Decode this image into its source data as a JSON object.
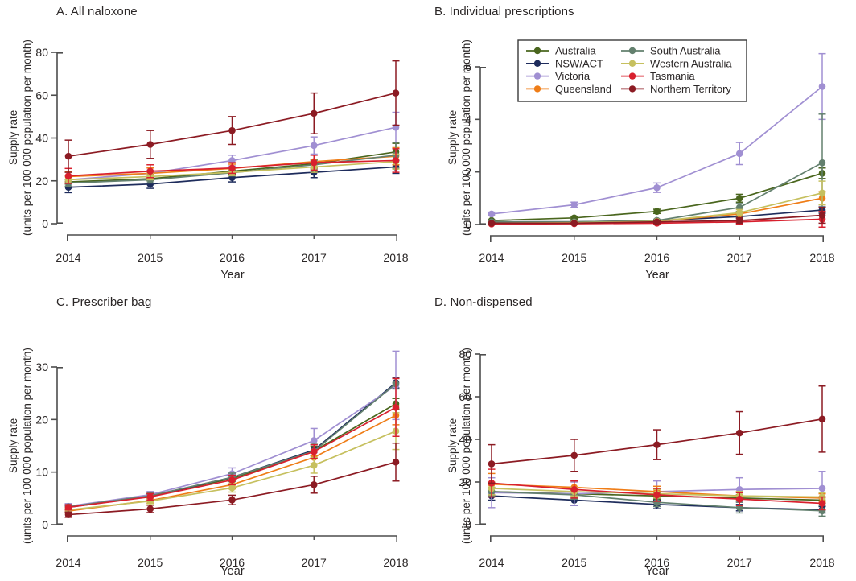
{
  "figure": {
    "background": "#ffffff",
    "text_color": "#2b2727",
    "axis_color": "#4d4d4d"
  },
  "colors": {
    "Australia": "#4a661e",
    "NSW/ACT": "#1e2c5c",
    "Victoria": "#a08fd2",
    "Queensland": "#ef7d17",
    "South Australia": "#63806e",
    "Western Australia": "#c6c05f",
    "Tasmania": "#d8202e",
    "Northern Territory": "#8c1b23"
  },
  "legend": {
    "columns": [
      [
        "Australia",
        "NSW/ACT",
        "Victoria",
        "Queensland"
      ],
      [
        "South Australia",
        "Western Australia",
        "Tasmania",
        "Northern Territory"
      ]
    ]
  },
  "chart_data": [
    {
      "type": "line",
      "title": "A. All naloxone",
      "xlabel": "Year",
      "ylabel": "Supply rate",
      "ylabel2": "(units per 100 000 population per month)",
      "x": [
        2014,
        2015,
        2016,
        2017,
        2018
      ],
      "ylim": [
        0,
        80
      ],
      "yticks": [
        0,
        20,
        40,
        60,
        80
      ],
      "legend": false,
      "error_bars": true,
      "series": [
        {
          "name": "Australia",
          "values": [
            19.5,
            21,
            24.5,
            28,
            33.5
          ],
          "err": [
            1,
            1,
            1.5,
            2,
            4
          ]
        },
        {
          "name": "NSW/ACT",
          "values": [
            17,
            18.5,
            21.5,
            24,
            26.5
          ],
          "err": [
            2.5,
            2,
            2,
            2.5,
            3
          ]
        },
        {
          "name": "Victoria",
          "values": [
            20.5,
            23.5,
            29.5,
            36.5,
            45
          ],
          "err": [
            1.5,
            1.5,
            2.5,
            4,
            7
          ]
        },
        {
          "name": "Queensland",
          "values": [
            22,
            23.5,
            25.8,
            29,
            31.5
          ],
          "err": [
            2.5,
            2.5,
            2,
            3,
            4
          ]
        },
        {
          "name": "South Australia",
          "values": [
            19,
            20.5,
            23.8,
            27.5,
            32
          ],
          "err": [
            1.5,
            1.5,
            1.5,
            2,
            6
          ]
        },
        {
          "name": "Western Australia",
          "values": [
            20.5,
            22,
            24,
            26.5,
            29
          ],
          "err": [
            1.5,
            1.5,
            1.5,
            2.5,
            3.5
          ]
        },
        {
          "name": "Tasmania",
          "values": [
            22.3,
            24.5,
            26,
            28.5,
            29.5
          ],
          "err": [
            3.5,
            3,
            2.5,
            3.5,
            5.5
          ]
        },
        {
          "name": "Northern Territory",
          "values": [
            31.5,
            37,
            43.5,
            51.5,
            61
          ],
          "err": [
            7.5,
            6.5,
            6.5,
            9.5,
            15
          ]
        }
      ]
    },
    {
      "type": "line",
      "title": "B. Individual prescriptions",
      "xlabel": "Year",
      "ylabel": "Supply rate",
      "ylabel2": "(units per 100 000 population per month)",
      "x": [
        2014,
        2015,
        2016,
        2017,
        2018
      ],
      "ylim": [
        0,
        6
      ],
      "yticks": [
        0,
        2,
        4,
        6
      ],
      "legend": true,
      "error_bars": true,
      "series": [
        {
          "name": "Australia",
          "values": [
            0.15,
            0.25,
            0.5,
            1.0,
            1.95
          ],
          "err": [
            0.03,
            0.05,
            0.08,
            0.15,
            0.2
          ]
        },
        {
          "name": "NSW/ACT",
          "values": [
            0.1,
            0.1,
            0.15,
            0.3,
            0.55
          ],
          "err": [
            0.02,
            0.02,
            0.03,
            0.06,
            0.12
          ]
        },
        {
          "name": "Victoria",
          "values": [
            0.4,
            0.75,
            1.4,
            2.7,
            5.25
          ],
          "err": [
            0.07,
            0.1,
            0.18,
            0.42,
            1.25
          ]
        },
        {
          "name": "Queensland",
          "values": [
            0.05,
            0.07,
            0.12,
            0.4,
            1.0
          ],
          "err": [
            0.02,
            0.02,
            0.03,
            0.08,
            0.25
          ]
        },
        {
          "name": "South Australia",
          "values": [
            0.1,
            0.1,
            0.15,
            0.65,
            2.35
          ],
          "err": [
            0.03,
            0.03,
            0.05,
            0.15,
            1.85
          ]
        },
        {
          "name": "Western Australia",
          "values": [
            0.05,
            0.07,
            0.12,
            0.45,
            1.2
          ],
          "err": [
            0.02,
            0.02,
            0.04,
            0.12,
            0.45
          ]
        },
        {
          "name": "Tasmania",
          "values": [
            0.02,
            0.03,
            0.05,
            0.1,
            0.2
          ],
          "err": [
            0.02,
            0.02,
            0.03,
            0.08,
            0.3
          ]
        },
        {
          "name": "Northern Territory",
          "values": [
            0.05,
            0.05,
            0.1,
            0.15,
            0.35
          ],
          "err": [
            0.03,
            0.03,
            0.05,
            0.1,
            0.3
          ]
        }
      ]
    },
    {
      "type": "line",
      "title": "C. Prescriber bag",
      "xlabel": "Year",
      "ylabel": "Supply rate",
      "ylabel2": "(units per 100 000 population per month)",
      "x": [
        2014,
        2015,
        2016,
        2017,
        2018
      ],
      "ylim": [
        0,
        30
      ],
      "yticks": [
        0,
        10,
        20,
        30
      ],
      "legend": false,
      "error_bars": true,
      "series": [
        {
          "name": "Australia",
          "values": [
            3.4,
            5.4,
            8.8,
            14,
            23
          ],
          "err": [
            0.3,
            0.4,
            0.6,
            0.9,
            1
          ]
        },
        {
          "name": "NSW/ACT",
          "values": [
            3.3,
            5.4,
            9,
            14.2,
            27
          ],
          "err": [
            0.3,
            0.4,
            0.7,
            1,
            1
          ]
        },
        {
          "name": "Victoria",
          "values": [
            3.5,
            5.7,
            9.7,
            16,
            26.5
          ],
          "err": [
            0.5,
            0.6,
            1.1,
            2.3,
            6.5
          ]
        },
        {
          "name": "Queensland",
          "values": [
            2.6,
            4.6,
            7.6,
            12.8,
            20.8
          ],
          "err": [
            0.4,
            0.5,
            0.8,
            1.2,
            1.8
          ]
        },
        {
          "name": "South Australia",
          "values": [
            3.4,
            5.5,
            9,
            14,
            26.8
          ],
          "err": [
            0.4,
            0.5,
            0.8,
            1.3,
            1
          ]
        },
        {
          "name": "Western Australia",
          "values": [
            2.8,
            4.5,
            7,
            11.3,
            17.8
          ],
          "err": [
            0.4,
            0.5,
            0.8,
            1.5,
            3.5
          ]
        },
        {
          "name": "Tasmania",
          "values": [
            3.3,
            5.3,
            8.5,
            13.9,
            22.3
          ],
          "err": [
            0.5,
            0.6,
            0.9,
            1.3,
            5.5
          ]
        },
        {
          "name": "Northern Territory",
          "values": [
            1.9,
            3.0,
            4.7,
            7.6,
            11.9
          ],
          "err": [
            0.5,
            0.7,
            0.9,
            1.6,
            3.6
          ]
        }
      ]
    },
    {
      "type": "line",
      "title": "D. Non-dispensed",
      "xlabel": "Year",
      "ylabel": "Supply rate",
      "ylabel2": "(units per 100 000 population per month)",
      "x": [
        2014,
        2015,
        2016,
        2017,
        2018
      ],
      "ylim": [
        0,
        80
      ],
      "yticks": [
        0,
        20,
        40,
        60,
        80
      ],
      "legend": false,
      "error_bars": true,
      "series": [
        {
          "name": "Australia",
          "values": [
            15.5,
            14.5,
            13.5,
            12.5,
            11.5
          ],
          "err": [
            1.5,
            1.5,
            1.5,
            1.5,
            1.5
          ]
        },
        {
          "name": "NSW/ACT",
          "values": [
            13.5,
            11.5,
            9.5,
            8,
            7
          ],
          "err": [
            2,
            2.5,
            2,
            1.5,
            1.5
          ]
        },
        {
          "name": "Victoria",
          "values": [
            15,
            14.5,
            15.5,
            16.5,
            17
          ],
          "err": [
            7,
            5.5,
            5,
            5.5,
            8
          ]
        },
        {
          "name": "Queensland",
          "values": [
            19,
            17.5,
            15.5,
            13.5,
            12.5
          ],
          "err": [
            5,
            3,
            2.5,
            2,
            2
          ]
        },
        {
          "name": "South Australia",
          "values": [
            15.5,
            14,
            10.5,
            8,
            6.5
          ],
          "err": [
            2,
            2,
            2,
            2.5,
            2.5
          ]
        },
        {
          "name": "Western Australia",
          "values": [
            17,
            15.5,
            14.5,
            13.5,
            13
          ],
          "err": [
            3,
            2,
            2,
            2,
            2
          ]
        },
        {
          "name": "Tasmania",
          "values": [
            19.5,
            16.5,
            14,
            12,
            10
          ],
          "err": [
            6.5,
            4,
            3,
            3,
            3
          ]
        },
        {
          "name": "Northern Territory",
          "values": [
            28.5,
            32.5,
            37.5,
            43,
            49.5
          ],
          "err": [
            9,
            7.5,
            7,
            10,
            15.5
          ]
        }
      ]
    }
  ]
}
